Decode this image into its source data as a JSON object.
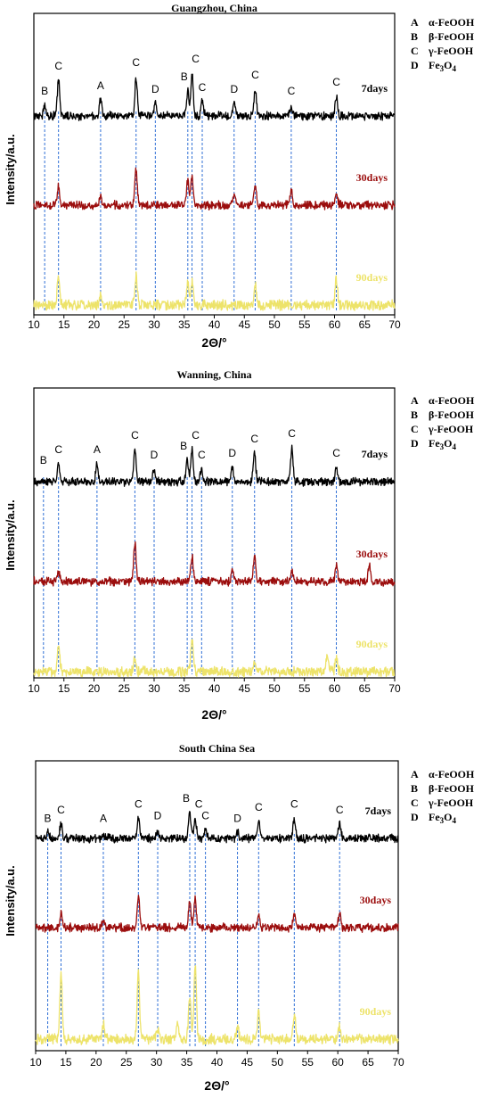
{
  "colors": {
    "7days": "#000000",
    "30days": "#9b0d0d",
    "90days": "#ede36a",
    "ref_line": "#2f6fd6"
  },
  "chart_data": [
    {
      "type": "line",
      "title": "Guangzhou, China",
      "xlabel": "2Θ/°",
      "ylabel": "Intensity/a.u.",
      "xlim": [
        10,
        70
      ],
      "xticks": [
        10,
        15,
        20,
        25,
        30,
        35,
        40,
        45,
        50,
        55,
        60,
        65,
        70
      ],
      "legend": [
        {
          "key": "A",
          "phase": "α-FeOOH"
        },
        {
          "key": "B",
          "phase": "β-FeOOH"
        },
        {
          "key": "C",
          "phase": "γ-FeOOH"
        },
        {
          "key": "D",
          "phase": "Fe3O4"
        }
      ],
      "reference_peaks": [
        {
          "x": 11.8,
          "label": "B"
        },
        {
          "x": 14.1,
          "label": "C"
        },
        {
          "x": 21.1,
          "label": "A"
        },
        {
          "x": 27.0,
          "label": "C"
        },
        {
          "x": 30.2,
          "label": "D"
        },
        {
          "x": 35.6,
          "label": "B"
        },
        {
          "x": 36.3,
          "label": "C"
        },
        {
          "x": 38.0,
          "label": "C"
        },
        {
          "x": 43.3,
          "label": "D"
        },
        {
          "x": 46.8,
          "label": "C"
        },
        {
          "x": 52.8,
          "label": "C"
        },
        {
          "x": 60.3,
          "label": "C"
        }
      ],
      "series": [
        {
          "name": "7days",
          "peaks": [
            [
              11.8,
              0.3
            ],
            [
              14.1,
              1.0
            ],
            [
              21.1,
              0.45
            ],
            [
              27.0,
              1.1
            ],
            [
              30.2,
              0.35
            ],
            [
              35.6,
              0.7
            ],
            [
              36.3,
              1.2
            ],
            [
              38.0,
              0.4
            ],
            [
              43.3,
              0.35
            ],
            [
              46.8,
              0.75
            ],
            [
              52.8,
              0.3
            ],
            [
              60.3,
              0.55
            ]
          ]
        },
        {
          "name": "30days",
          "peaks": [
            [
              14.1,
              0.5
            ],
            [
              21.1,
              0.25
            ],
            [
              27.0,
              1.0
            ],
            [
              35.6,
              0.7
            ],
            [
              36.3,
              0.85
            ],
            [
              43.3,
              0.35
            ],
            [
              46.8,
              0.55
            ],
            [
              52.8,
              0.45
            ],
            [
              60.3,
              0.35
            ]
          ]
        },
        {
          "name": "90days",
          "peaks": [
            [
              14.1,
              0.8
            ],
            [
              21.1,
              0.3
            ],
            [
              27.0,
              0.8
            ],
            [
              35.6,
              0.6
            ],
            [
              36.3,
              0.7
            ],
            [
              46.8,
              0.55
            ],
            [
              60.3,
              0.75
            ]
          ]
        }
      ]
    },
    {
      "type": "line",
      "title": "Wanning, China",
      "xlabel": "2Θ/°",
      "ylabel": "Intensity/a.u.",
      "xlim": [
        10,
        70
      ],
      "xticks": [
        10,
        15,
        20,
        25,
        30,
        35,
        40,
        45,
        50,
        55,
        60,
        65,
        70
      ],
      "legend": [
        {
          "key": "A",
          "phase": "α-FeOOH"
        },
        {
          "key": "B",
          "phase": "β-FeOOH"
        },
        {
          "key": "C",
          "phase": "γ-FeOOH"
        },
        {
          "key": "D",
          "phase": "Fe3O4"
        }
      ],
      "reference_peaks": [
        {
          "x": 11.6,
          "label": "B"
        },
        {
          "x": 14.1,
          "label": "C"
        },
        {
          "x": 20.5,
          "label": "A"
        },
        {
          "x": 26.8,
          "label": "C"
        },
        {
          "x": 30.0,
          "label": "D"
        },
        {
          "x": 35.5,
          "label": "B"
        },
        {
          "x": 36.3,
          "label": "C"
        },
        {
          "x": 37.9,
          "label": "C"
        },
        {
          "x": 43.0,
          "label": "D"
        },
        {
          "x": 46.7,
          "label": "C"
        },
        {
          "x": 52.9,
          "label": "C"
        },
        {
          "x": 60.3,
          "label": "C"
        }
      ],
      "series": [
        {
          "name": "7days",
          "peaks": [
            [
              14.1,
              0.5
            ],
            [
              20.5,
              0.5
            ],
            [
              26.8,
              0.9
            ],
            [
              30.0,
              0.35
            ],
            [
              35.5,
              0.6
            ],
            [
              36.3,
              0.9
            ],
            [
              37.9,
              0.35
            ],
            [
              43.0,
              0.4
            ],
            [
              46.7,
              0.8
            ],
            [
              52.9,
              0.95
            ],
            [
              60.3,
              0.4
            ]
          ]
        },
        {
          "name": "30days",
          "peaks": [
            [
              14.1,
              0.3
            ],
            [
              26.8,
              1.1
            ],
            [
              36.3,
              0.7
            ],
            [
              43.0,
              0.3
            ],
            [
              46.7,
              0.75
            ],
            [
              52.9,
              0.3
            ],
            [
              60.3,
              0.5
            ],
            [
              65.8,
              0.5
            ]
          ]
        },
        {
          "name": "90days",
          "peaks": [
            [
              14.1,
              0.8
            ],
            [
              26.8,
              0.4
            ],
            [
              36.3,
              0.9
            ],
            [
              46.7,
              0.3
            ],
            [
              58.8,
              0.5
            ],
            [
              60.3,
              0.4
            ]
          ]
        }
      ]
    },
    {
      "type": "line",
      "title": "South China Sea",
      "xlabel": "2Θ/°",
      "ylabel": "Intensity/a.u.",
      "xlim": [
        10,
        70
      ],
      "xticks": [
        10,
        15,
        20,
        25,
        30,
        35,
        40,
        45,
        50,
        55,
        60,
        65,
        70
      ],
      "legend": [
        {
          "key": "A",
          "phase": "α-FeOOH"
        },
        {
          "key": "B",
          "phase": "β-FeOOH"
        },
        {
          "key": "C",
          "phase": "γ-FeOOH"
        },
        {
          "key": "D",
          "phase": "Fe3O4"
        }
      ],
      "reference_peaks": [
        {
          "x": 12.0,
          "label": "B"
        },
        {
          "x": 14.2,
          "label": "C"
        },
        {
          "x": 21.2,
          "label": "A"
        },
        {
          "x": 27.0,
          "label": "C"
        },
        {
          "x": 30.2,
          "label": "D"
        },
        {
          "x": 35.5,
          "label": "B"
        },
        {
          "x": 36.4,
          "label": "C"
        },
        {
          "x": 38.1,
          "label": "C"
        },
        {
          "x": 43.4,
          "label": "D"
        },
        {
          "x": 46.9,
          "label": "C"
        },
        {
          "x": 52.8,
          "label": "C"
        },
        {
          "x": 60.3,
          "label": "C"
        }
      ],
      "series": [
        {
          "name": "7days",
          "peaks": [
            [
              12.0,
              0.2
            ],
            [
              14.2,
              0.5
            ],
            [
              21.2,
              0.2
            ],
            [
              27.0,
              0.7
            ],
            [
              30.2,
              0.3
            ],
            [
              35.5,
              0.9
            ],
            [
              36.4,
              0.7
            ],
            [
              38.1,
              0.3
            ],
            [
              43.4,
              0.2
            ],
            [
              46.9,
              0.6
            ],
            [
              52.8,
              0.7
            ],
            [
              60.3,
              0.5
            ]
          ]
        },
        {
          "name": "30days",
          "peaks": [
            [
              14.2,
              0.5
            ],
            [
              21.2,
              0.3
            ],
            [
              27.0,
              1.1
            ],
            [
              35.5,
              0.9
            ],
            [
              36.4,
              1.0
            ],
            [
              46.9,
              0.45
            ],
            [
              52.8,
              0.5
            ],
            [
              60.3,
              0.55
            ]
          ]
        },
        {
          "name": "90days",
          "peaks": [
            [
              14.2,
              2.3
            ],
            [
              21.2,
              0.5
            ],
            [
              27.0,
              2.3
            ],
            [
              30.2,
              0.4
            ],
            [
              33.5,
              0.5
            ],
            [
              35.5,
              1.5
            ],
            [
              36.4,
              2.6
            ],
            [
              43.4,
              0.4
            ],
            [
              46.9,
              0.9
            ],
            [
              52.8,
              0.9
            ],
            [
              60.3,
              0.5
            ]
          ]
        }
      ]
    }
  ]
}
